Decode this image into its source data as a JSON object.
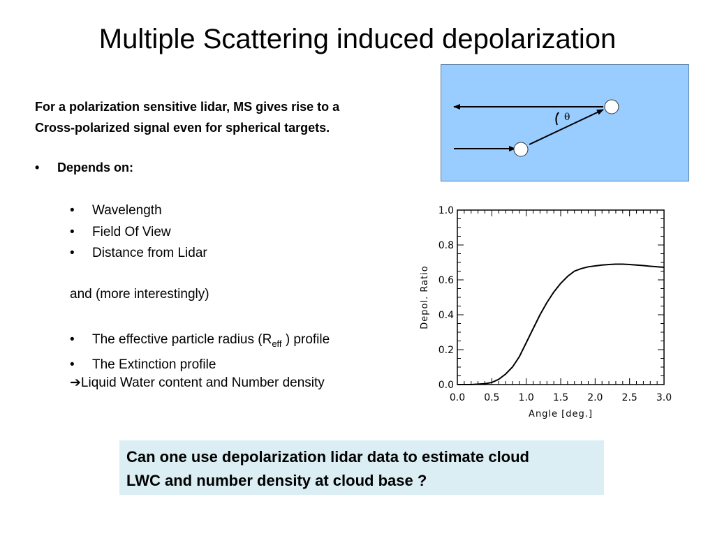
{
  "slide": {
    "title": "Multiple Scattering induced depolarization",
    "intro_line1": "For a polarization sensitive lidar, MS  gives rise to a",
    "intro_line2": "Cross-polarized signal even for spherical targets.",
    "depends_bullet": "•",
    "depends_label": "Depends on:",
    "bullets_a": [
      "Wavelength",
      "Field Of View",
      "Distance from Lidar"
    ],
    "interest": "and (more interestingly)",
    "bullet_char": "•",
    "reff_prefix": "The effective particle radius (R",
    "reff_sub": "eff",
    "reff_suffix": " ) profile",
    "extinction": "The Extinction profile",
    "arrow_char": "➔",
    "arrow_text": "Liquid Water content and Number density",
    "question_line1": "Can one use depolarization lidar data to estimate cloud",
    "question_line2": "LWC and number density at cloud base ?"
  },
  "diagram": {
    "theta_label": "θ",
    "background_color": "#99ccff"
  },
  "chart_data": {
    "type": "line",
    "title": "",
    "xlabel": "Angle [deg.]",
    "ylabel": "Depol. Ratio",
    "xlim": [
      0.0,
      3.0
    ],
    "ylim": [
      0.0,
      1.0
    ],
    "x_ticks": [
      "0.0",
      "0.5",
      "1.0",
      "1.5",
      "2.0",
      "2.5",
      "3.0"
    ],
    "y_ticks": [
      "0.0",
      "0.2",
      "0.4",
      "0.6",
      "0.8",
      "1.0"
    ],
    "grid": false,
    "series": [
      {
        "x": [
          0.0,
          0.2,
          0.4,
          0.5,
          0.6,
          0.7,
          0.8,
          0.9,
          1.0,
          1.1,
          1.2,
          1.3,
          1.4,
          1.5,
          1.6,
          1.7,
          1.8,
          1.9,
          2.0,
          2.1,
          2.2,
          2.3,
          2.4,
          2.5,
          2.6,
          2.7,
          2.8,
          2.9,
          3.0
        ],
        "y": [
          0.0,
          0.0,
          0.005,
          0.012,
          0.03,
          0.06,
          0.1,
          0.16,
          0.24,
          0.32,
          0.4,
          0.47,
          0.53,
          0.58,
          0.62,
          0.65,
          0.665,
          0.675,
          0.68,
          0.685,
          0.688,
          0.69,
          0.69,
          0.688,
          0.685,
          0.682,
          0.678,
          0.675,
          0.672
        ]
      }
    ]
  }
}
